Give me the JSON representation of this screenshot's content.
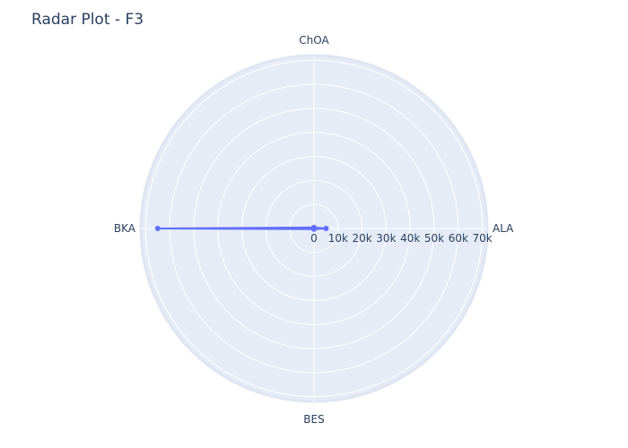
{
  "chart_data": {
    "type": "radar",
    "title": "Radar Plot - F3",
    "categories": [
      "ALA",
      "ChOA",
      "BKA",
      "BES"
    ],
    "series": [
      {
        "values": [
          5000,
          400,
          65000,
          300
        ],
        "color": "#636efa"
      }
    ],
    "radial_range": [
      0,
      72000
    ],
    "radial_ticks": [
      0,
      10000,
      20000,
      30000,
      40000,
      50000,
      60000,
      70000
    ],
    "radial_tick_labels": [
      "0",
      "10k",
      "20k",
      "30k",
      "40k",
      "50k",
      "60k",
      "70k"
    ],
    "grid": true,
    "colors": {
      "background": "#e5ecf6",
      "grid": "#ffffff",
      "text": "#2a3f5f"
    }
  }
}
